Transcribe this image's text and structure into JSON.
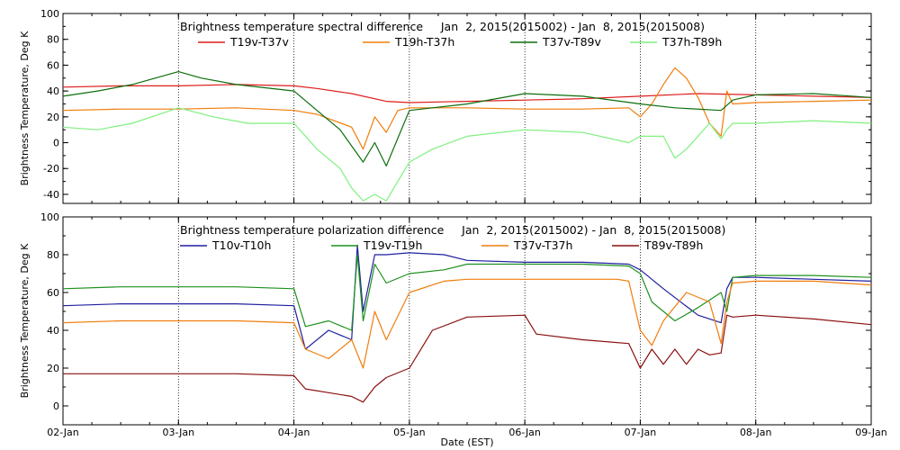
{
  "chart_data": [
    {
      "type": "line",
      "title": "Brightness temperature spectral difference     Jan  2, 2015(2015002) - Jan  8, 2015(2015008)",
      "xlabel": "",
      "ylabel": "Brightness Temperature, Deg K",
      "xlim": [
        0,
        7
      ],
      "ylim": [
        -47,
        100
      ],
      "yticks": [
        -40,
        -20,
        0,
        20,
        40,
        60,
        80,
        100
      ],
      "xtick_labels": [
        "02-Jan",
        "03-Jan",
        "04-Jan",
        "05-Jan",
        "06-Jan",
        "07-Jan",
        "08-Jan",
        "09-Jan"
      ],
      "grid": "dotted vertical lines at day boundaries",
      "legend_position": "top",
      "series": [
        {
          "name": "T19v-T37v",
          "color": "#dd1c1c",
          "x": [
            0,
            0.5,
            1,
            1.5,
            2,
            2.2,
            2.5,
            2.8,
            3,
            3.5,
            4,
            4.5,
            5,
            5.5,
            6,
            6.5,
            7
          ],
          "y": [
            43,
            44,
            44,
            45,
            44,
            42,
            38,
            32,
            31,
            32,
            33,
            34,
            36,
            38,
            37,
            36,
            35
          ]
        },
        {
          "name": "T19h-T37h",
          "color": "#f07d0c",
          "x": [
            0,
            0.5,
            1,
            1.5,
            2,
            2.2,
            2.5,
            2.6,
            2.7,
            2.8,
            2.9,
            3,
            3.5,
            4,
            4.5,
            4.9,
            5,
            5.1,
            5.2,
            5.3,
            5.4,
            5.5,
            5.6,
            5.7,
            5.75,
            5.8,
            6,
            6.5,
            7
          ],
          "y": [
            25,
            26,
            26,
            27,
            25,
            22,
            12,
            -5,
            20,
            8,
            25,
            27,
            27,
            26,
            26,
            27,
            20,
            30,
            45,
            58,
            50,
            35,
            15,
            5,
            40,
            30,
            31,
            32,
            33
          ]
        },
        {
          "name": "T37v-T89v",
          "color": "#0d6e0d",
          "x": [
            0,
            0.3,
            0.6,
            1,
            1.2,
            1.5,
            2,
            2.2,
            2.4,
            2.6,
            2.7,
            2.8,
            3,
            3.5,
            4,
            4.5,
            5,
            5.3,
            5.7,
            5.8,
            6,
            6.5,
            7
          ],
          "y": [
            36,
            40,
            45,
            55,
            50,
            45,
            40,
            25,
            10,
            -15,
            0,
            -18,
            25,
            30,
            38,
            36,
            30,
            27,
            25,
            33,
            37,
            38,
            35
          ]
        },
        {
          "name": "T37h-T89h",
          "color": "#7ff07f",
          "x": [
            0,
            0.3,
            0.6,
            1,
            1.3,
            1.6,
            2,
            2.2,
            2.4,
            2.5,
            2.6,
            2.7,
            2.8,
            2.9,
            3,
            3.2,
            3.5,
            4,
            4.5,
            4.9,
            5,
            5.2,
            5.3,
            5.4,
            5.6,
            5.7,
            5.75,
            5.8,
            6,
            6.5,
            7
          ],
          "y": [
            12,
            10,
            15,
            27,
            20,
            15,
            15,
            -5,
            -20,
            -35,
            -45,
            -40,
            -45,
            -30,
            -15,
            -5,
            5,
            10,
            8,
            0,
            5,
            5,
            -12,
            -5,
            15,
            3,
            10,
            15,
            15,
            17,
            15
          ]
        }
      ]
    },
    {
      "type": "line",
      "title": "Brightness temperature polarization difference     Jan  2, 2015(2015002) - Jan  8, 2015(2015008)",
      "xlabel": "Date (EST)",
      "ylabel": "Brightness Temperature, Deg K",
      "xlim": [
        0,
        7
      ],
      "ylim": [
        -10,
        100
      ],
      "yticks": [
        0,
        20,
        40,
        60,
        80,
        100
      ],
      "xtick_labels": [
        "02-Jan",
        "03-Jan",
        "04-Jan",
        "05-Jan",
        "06-Jan",
        "07-Jan",
        "08-Jan",
        "09-Jan"
      ],
      "grid": "dotted vertical lines at day boundaries",
      "legend_position": "top",
      "series": [
        {
          "name": "T10v-T10h",
          "color": "#1f1fa0",
          "x": [
            0,
            0.5,
            1,
            1.5,
            2,
            2.1,
            2.3,
            2.5,
            2.55,
            2.6,
            2.7,
            2.8,
            3,
            3.3,
            3.5,
            4,
            4.5,
            4.9,
            5,
            5.2,
            5.5,
            5.7,
            5.75,
            5.8,
            6,
            6.5,
            7
          ],
          "y": [
            53,
            54,
            54,
            54,
            53,
            30,
            40,
            35,
            85,
            50,
            80,
            80,
            81,
            80,
            77,
            76,
            76,
            75,
            72,
            62,
            48,
            44,
            62,
            68,
            68,
            67,
            66
          ]
        },
        {
          "name": "T19v-T19h",
          "color": "#1e901e",
          "x": [
            0,
            0.5,
            1,
            1.5,
            2,
            2.1,
            2.3,
            2.5,
            2.55,
            2.6,
            2.7,
            2.8,
            3,
            3.3,
            3.5,
            4,
            4.5,
            4.9,
            5,
            5.1,
            5.3,
            5.5,
            5.7,
            5.75,
            5.8,
            6,
            6.5,
            7
          ],
          "y": [
            62,
            63,
            63,
            63,
            62,
            42,
            45,
            40,
            80,
            45,
            75,
            65,
            70,
            72,
            75,
            75,
            75,
            74,
            70,
            55,
            45,
            52,
            60,
            50,
            68,
            69,
            69,
            68
          ]
        },
        {
          "name": "T37v-T37h",
          "color": "#f07d0c",
          "x": [
            0,
            0.5,
            1,
            1.5,
            2,
            2.1,
            2.3,
            2.5,
            2.6,
            2.7,
            2.8,
            3,
            3.3,
            3.5,
            4,
            4.5,
            4.8,
            4.9,
            5,
            5.1,
            5.2,
            5.4,
            5.6,
            5.7,
            5.75,
            5.8,
            6,
            6.5,
            7
          ],
          "y": [
            44,
            45,
            45,
            45,
            44,
            30,
            25,
            35,
            20,
            50,
            35,
            60,
            66,
            67,
            67,
            67,
            67,
            66,
            40,
            32,
            45,
            60,
            55,
            33,
            55,
            65,
            66,
            66,
            64
          ]
        },
        {
          "name": "T89v-T89h",
          "color": "#8a1010",
          "x": [
            0,
            0.5,
            1,
            1.5,
            2,
            2.1,
            2.3,
            2.5,
            2.6,
            2.7,
            2.8,
            3,
            3.2,
            3.5,
            4,
            4.1,
            4.5,
            4.9,
            5,
            5.1,
            5.2,
            5.3,
            5.4,
            5.5,
            5.6,
            5.7,
            5.75,
            5.8,
            6,
            6.5,
            7
          ],
          "y": [
            17,
            17,
            17,
            17,
            16,
            9,
            7,
            5,
            2,
            10,
            15,
            20,
            40,
            47,
            48,
            38,
            35,
            33,
            20,
            30,
            22,
            30,
            22,
            30,
            27,
            28,
            48,
            47,
            48,
            46,
            43
          ]
        }
      ]
    }
  ]
}
